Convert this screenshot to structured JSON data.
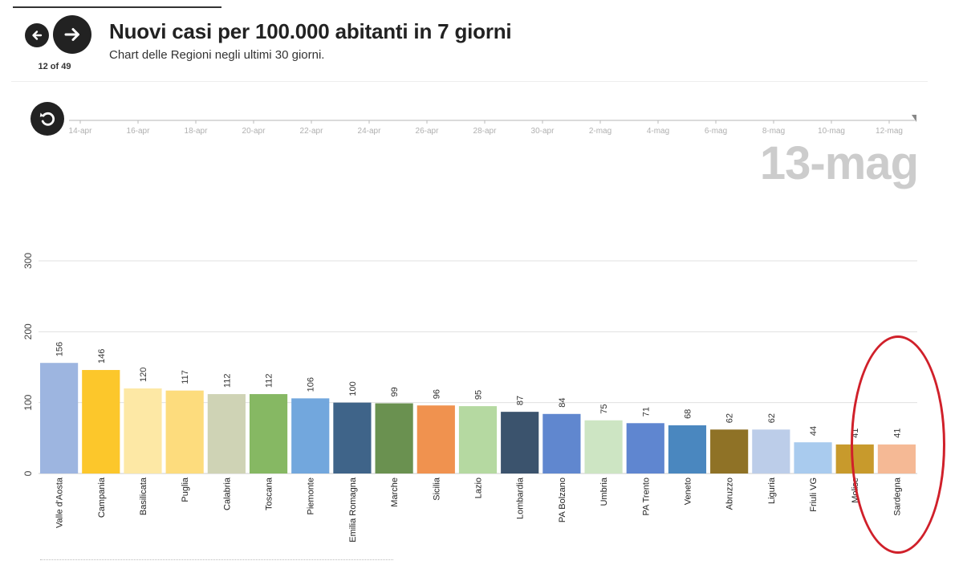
{
  "header": {
    "title": "Nuovi casi per 100.000 abitanti in 7 giorni",
    "subtitle": "Chart delle Regioni negli ultimi 30 giorni.",
    "counter": "12 of 49"
  },
  "icons": {
    "prev": "arrow-left-icon",
    "next": "arrow-right-icon",
    "reset": "replay-icon"
  },
  "timeline": {
    "ticks": [
      "14-apr",
      "16-apr",
      "18-apr",
      "20-apr",
      "22-apr",
      "24-apr",
      "26-apr",
      "28-apr",
      "30-apr",
      "2-mag",
      "4-mag",
      "6-mag",
      "8-mag",
      "10-mag",
      "12-mag"
    ],
    "current_date": "13-mag"
  },
  "colors": {
    "highlight_circle": "#d0202a",
    "grid": "#e0e0e0"
  },
  "chart_data": {
    "type": "bar",
    "title": "Nuovi casi per 100.000 abitanti in 7 giorni",
    "xlabel": "",
    "ylabel": "",
    "ylim": [
      0,
      300
    ],
    "yticks": [
      0,
      100,
      200,
      300
    ],
    "categories": [
      "Valle d'Aosta",
      "Campania",
      "Basilicata",
      "Puglia",
      "Calabria",
      "Toscana",
      "Piemonte",
      "Emilia Romagna",
      "Marche",
      "Sicilia",
      "Lazio",
      "Lombardia",
      "PA Bolzano",
      "Umbria",
      "PA Trento",
      "Veneto",
      "Abruzzo",
      "Liguria",
      "Friuli VG",
      "Molise",
      "Sardegna"
    ],
    "values": [
      156,
      146,
      120,
      117,
      112,
      112,
      106,
      100,
      99,
      96,
      95,
      87,
      84,
      75,
      71,
      68,
      62,
      62,
      44,
      41,
      41
    ],
    "colors": [
      "#9db5e0",
      "#fcc72b",
      "#fde8a5",
      "#fddc7d",
      "#cfd3b5",
      "#86b863",
      "#72a7dd",
      "#3f6489",
      "#6a9150",
      "#f0924f",
      "#b5d9a1",
      "#3b536d",
      "#6087cf",
      "#cde5c3",
      "#5f86d0",
      "#4a87bf",
      "#8f7226",
      "#bccde9",
      "#a9cbee",
      "#c89a2c",
      "#f5b995"
    ],
    "highlighted": [
      "Sardegna"
    ]
  }
}
